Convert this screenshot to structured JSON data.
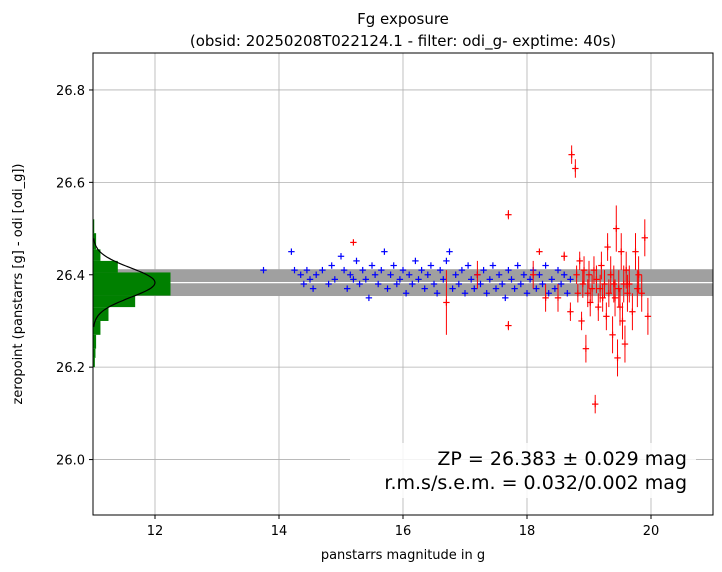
{
  "chart_data": {
    "type": "scatter",
    "title": "Fg exposure",
    "subtitle": "(obsid: 20250208T022124.1 - filter: odi_g- exptime: 40s)",
    "xlabel": "panstarrs magnitude in g",
    "ylabel": "zeropoint (panstarrs [g] - odi [odi_g])",
    "xlim": [
      11.0,
      21.0
    ],
    "ylim": [
      25.88,
      26.88
    ],
    "x_ticks": [
      "12",
      "14",
      "16",
      "18",
      "20"
    ],
    "y_ticks": [
      "26.0",
      "26.2",
      "26.4",
      "26.6",
      "26.8"
    ],
    "x_tick_values": [
      12,
      14,
      16,
      18,
      20
    ],
    "y_tick_values": [
      26.0,
      26.2,
      26.4,
      26.6,
      26.8
    ],
    "grid": true,
    "zeropoint": 26.383,
    "zeropoint_band": [
      26.354,
      26.412
    ],
    "annotations": [
      "ZP = 26.383 ± 0.029 mag",
      "r.m.s/s.e.m. = 0.032/0.002 mag"
    ],
    "colors": {
      "good": "#0000ff",
      "outlier": "#ff0000",
      "histogram": "#008000",
      "band": "#a0a0a0",
      "zp_line": "#ffffff",
      "gauss": "#000000"
    },
    "histogram": {
      "bins": [
        {
          "y0": 26.2,
          "y1": 26.22,
          "x": 11.03
        },
        {
          "y0": 26.22,
          "y1": 26.24,
          "x": 11.04
        },
        {
          "y0": 26.24,
          "y1": 26.27,
          "x": 11.05
        },
        {
          "y0": 26.27,
          "y1": 26.3,
          "x": 11.12
        },
        {
          "y0": 26.3,
          "y1": 26.33,
          "x": 11.25
        },
        {
          "y0": 26.33,
          "y1": 26.355,
          "x": 11.68
        },
        {
          "y0": 26.355,
          "y1": 26.38,
          "x": 12.25
        },
        {
          "y0": 26.38,
          "y1": 26.405,
          "x": 12.25
        },
        {
          "y0": 26.405,
          "y1": 26.43,
          "x": 11.4
        },
        {
          "y0": 26.43,
          "y1": 26.455,
          "x": 11.12
        },
        {
          "y0": 26.455,
          "y1": 26.49,
          "x": 11.05
        },
        {
          "y0": 26.49,
          "y1": 26.52,
          "x": 11.02
        }
      ]
    },
    "gaussian": {
      "mean": 26.383,
      "sigma": 0.032,
      "peak_x": 12.0
    },
    "series": [
      {
        "name": "",
        "marker": "plus",
        "color": "#0000ff",
        "points": [
          [
            13.75,
            26.41
          ],
          [
            14.2,
            26.45
          ],
          [
            14.25,
            26.41
          ],
          [
            14.35,
            26.4
          ],
          [
            14.4,
            26.38
          ],
          [
            14.45,
            26.41
          ],
          [
            14.5,
            26.39
          ],
          [
            14.55,
            26.37
          ],
          [
            14.6,
            26.4
          ],
          [
            14.7,
            26.41
          ],
          [
            14.8,
            26.38
          ],
          [
            14.85,
            26.42
          ],
          [
            14.9,
            26.39
          ],
          [
            15.0,
            26.44
          ],
          [
            15.05,
            26.41
          ],
          [
            15.1,
            26.37
          ],
          [
            15.15,
            26.4
          ],
          [
            15.2,
            26.39
          ],
          [
            15.25,
            26.43
          ],
          [
            15.3,
            26.38
          ],
          [
            15.35,
            26.41
          ],
          [
            15.4,
            26.39
          ],
          [
            15.45,
            26.35
          ],
          [
            15.5,
            26.42
          ],
          [
            15.55,
            26.4
          ],
          [
            15.6,
            26.38
          ],
          [
            15.65,
            26.41
          ],
          [
            15.7,
            26.45
          ],
          [
            15.75,
            26.37
          ],
          [
            15.8,
            26.4
          ],
          [
            15.85,
            26.42
          ],
          [
            15.9,
            26.38
          ],
          [
            15.95,
            26.39
          ],
          [
            16.0,
            26.41
          ],
          [
            16.05,
            26.36
          ],
          [
            16.1,
            26.4
          ],
          [
            16.15,
            26.38
          ],
          [
            16.2,
            26.43
          ],
          [
            16.25,
            26.39
          ],
          [
            16.3,
            26.41
          ],
          [
            16.35,
            26.37
          ],
          [
            16.4,
            26.4
          ],
          [
            16.45,
            26.42
          ],
          [
            16.5,
            26.38
          ],
          [
            16.55,
            26.36
          ],
          [
            16.6,
            26.41
          ],
          [
            16.65,
            26.39
          ],
          [
            16.7,
            26.43
          ],
          [
            16.75,
            26.45
          ],
          [
            16.8,
            26.37
          ],
          [
            16.85,
            26.4
          ],
          [
            16.9,
            26.38
          ],
          [
            16.95,
            26.41
          ],
          [
            17.0,
            26.36
          ],
          [
            17.05,
            26.42
          ],
          [
            17.1,
            26.39
          ],
          [
            17.15,
            26.37
          ],
          [
            17.2,
            26.4
          ],
          [
            17.25,
            26.38
          ],
          [
            17.3,
            26.41
          ],
          [
            17.35,
            26.36
          ],
          [
            17.4,
            26.39
          ],
          [
            17.45,
            26.42
          ],
          [
            17.5,
            26.37
          ],
          [
            17.55,
            26.4
          ],
          [
            17.6,
            26.38
          ],
          [
            17.65,
            26.35
          ],
          [
            17.7,
            26.41
          ],
          [
            17.75,
            26.39
          ],
          [
            17.8,
            26.37
          ],
          [
            17.85,
            26.42
          ],
          [
            17.9,
            26.38
          ],
          [
            17.95,
            26.4
          ],
          [
            18.0,
            26.36
          ],
          [
            18.05,
            26.39
          ],
          [
            18.1,
            26.41
          ],
          [
            18.15,
            26.37
          ],
          [
            18.2,
            26.4
          ],
          [
            18.25,
            26.38
          ],
          [
            18.3,
            26.42
          ],
          [
            18.35,
            26.36
          ],
          [
            18.4,
            26.39
          ],
          [
            18.45,
            26.37
          ],
          [
            18.5,
            26.41
          ],
          [
            18.55,
            26.38
          ],
          [
            18.6,
            26.4
          ],
          [
            18.65,
            26.36
          ],
          [
            18.7,
            26.39
          ]
        ]
      },
      {
        "name": "",
        "marker": "plus-errorbar",
        "color": "#ff0000",
        "points": [
          [
            15.2,
            26.47,
            0.0
          ],
          [
            16.7,
            26.34,
            0.07
          ],
          [
            17.2,
            26.4,
            0.03
          ],
          [
            17.7,
            26.53,
            0.01
          ],
          [
            17.7,
            26.29,
            0.01
          ],
          [
            18.1,
            26.4,
            0.03
          ],
          [
            18.2,
            26.45,
            0.0
          ],
          [
            18.3,
            26.35,
            0.03
          ],
          [
            18.5,
            26.35,
            0.03
          ],
          [
            18.6,
            26.44,
            0.01
          ],
          [
            18.7,
            26.32,
            0.02
          ],
          [
            18.72,
            26.66,
            0.02
          ],
          [
            18.78,
            26.63,
            0.02
          ],
          [
            18.8,
            26.4,
            0.02
          ],
          [
            18.82,
            26.36,
            0.02
          ],
          [
            18.85,
            26.43,
            0.02
          ],
          [
            18.88,
            26.3,
            0.02
          ],
          [
            18.9,
            26.38,
            0.03
          ],
          [
            18.92,
            26.41,
            0.03
          ],
          [
            18.95,
            26.24,
            0.03
          ],
          [
            18.98,
            26.36,
            0.03
          ],
          [
            19.0,
            26.4,
            0.03
          ],
          [
            19.02,
            26.34,
            0.03
          ],
          [
            19.05,
            26.37,
            0.03
          ],
          [
            19.08,
            26.41,
            0.03
          ],
          [
            19.1,
            26.12,
            0.02
          ],
          [
            19.12,
            26.39,
            0.03
          ],
          [
            19.15,
            26.33,
            0.03
          ],
          [
            19.18,
            26.37,
            0.03
          ],
          [
            19.2,
            26.42,
            0.03
          ],
          [
            19.22,
            26.35,
            0.03
          ],
          [
            19.25,
            26.38,
            0.03
          ],
          [
            19.28,
            26.31,
            0.03
          ],
          [
            19.3,
            26.46,
            0.03
          ],
          [
            19.32,
            26.36,
            0.03
          ],
          [
            19.35,
            26.4,
            0.04
          ],
          [
            19.38,
            26.27,
            0.04
          ],
          [
            19.4,
            26.38,
            0.04
          ],
          [
            19.42,
            26.35,
            0.04
          ],
          [
            19.44,
            26.5,
            0.05
          ],
          [
            19.46,
            26.22,
            0.04
          ],
          [
            19.48,
            26.37,
            0.04
          ],
          [
            19.5,
            26.33,
            0.04
          ],
          [
            19.52,
            26.45,
            0.04
          ],
          [
            19.54,
            26.3,
            0.04
          ],
          [
            19.56,
            26.38,
            0.04
          ],
          [
            19.58,
            26.25,
            0.04
          ],
          [
            19.6,
            26.41,
            0.04
          ],
          [
            19.62,
            26.36,
            0.04
          ],
          [
            19.65,
            26.38,
            0.04
          ],
          [
            19.7,
            26.32,
            0.04
          ],
          [
            19.75,
            26.45,
            0.04
          ],
          [
            19.78,
            26.37,
            0.04
          ],
          [
            19.8,
            26.4,
            0.04
          ],
          [
            19.85,
            26.36,
            0.04
          ],
          [
            19.9,
            26.48,
            0.04
          ],
          [
            19.95,
            26.31,
            0.04
          ]
        ]
      }
    ]
  }
}
